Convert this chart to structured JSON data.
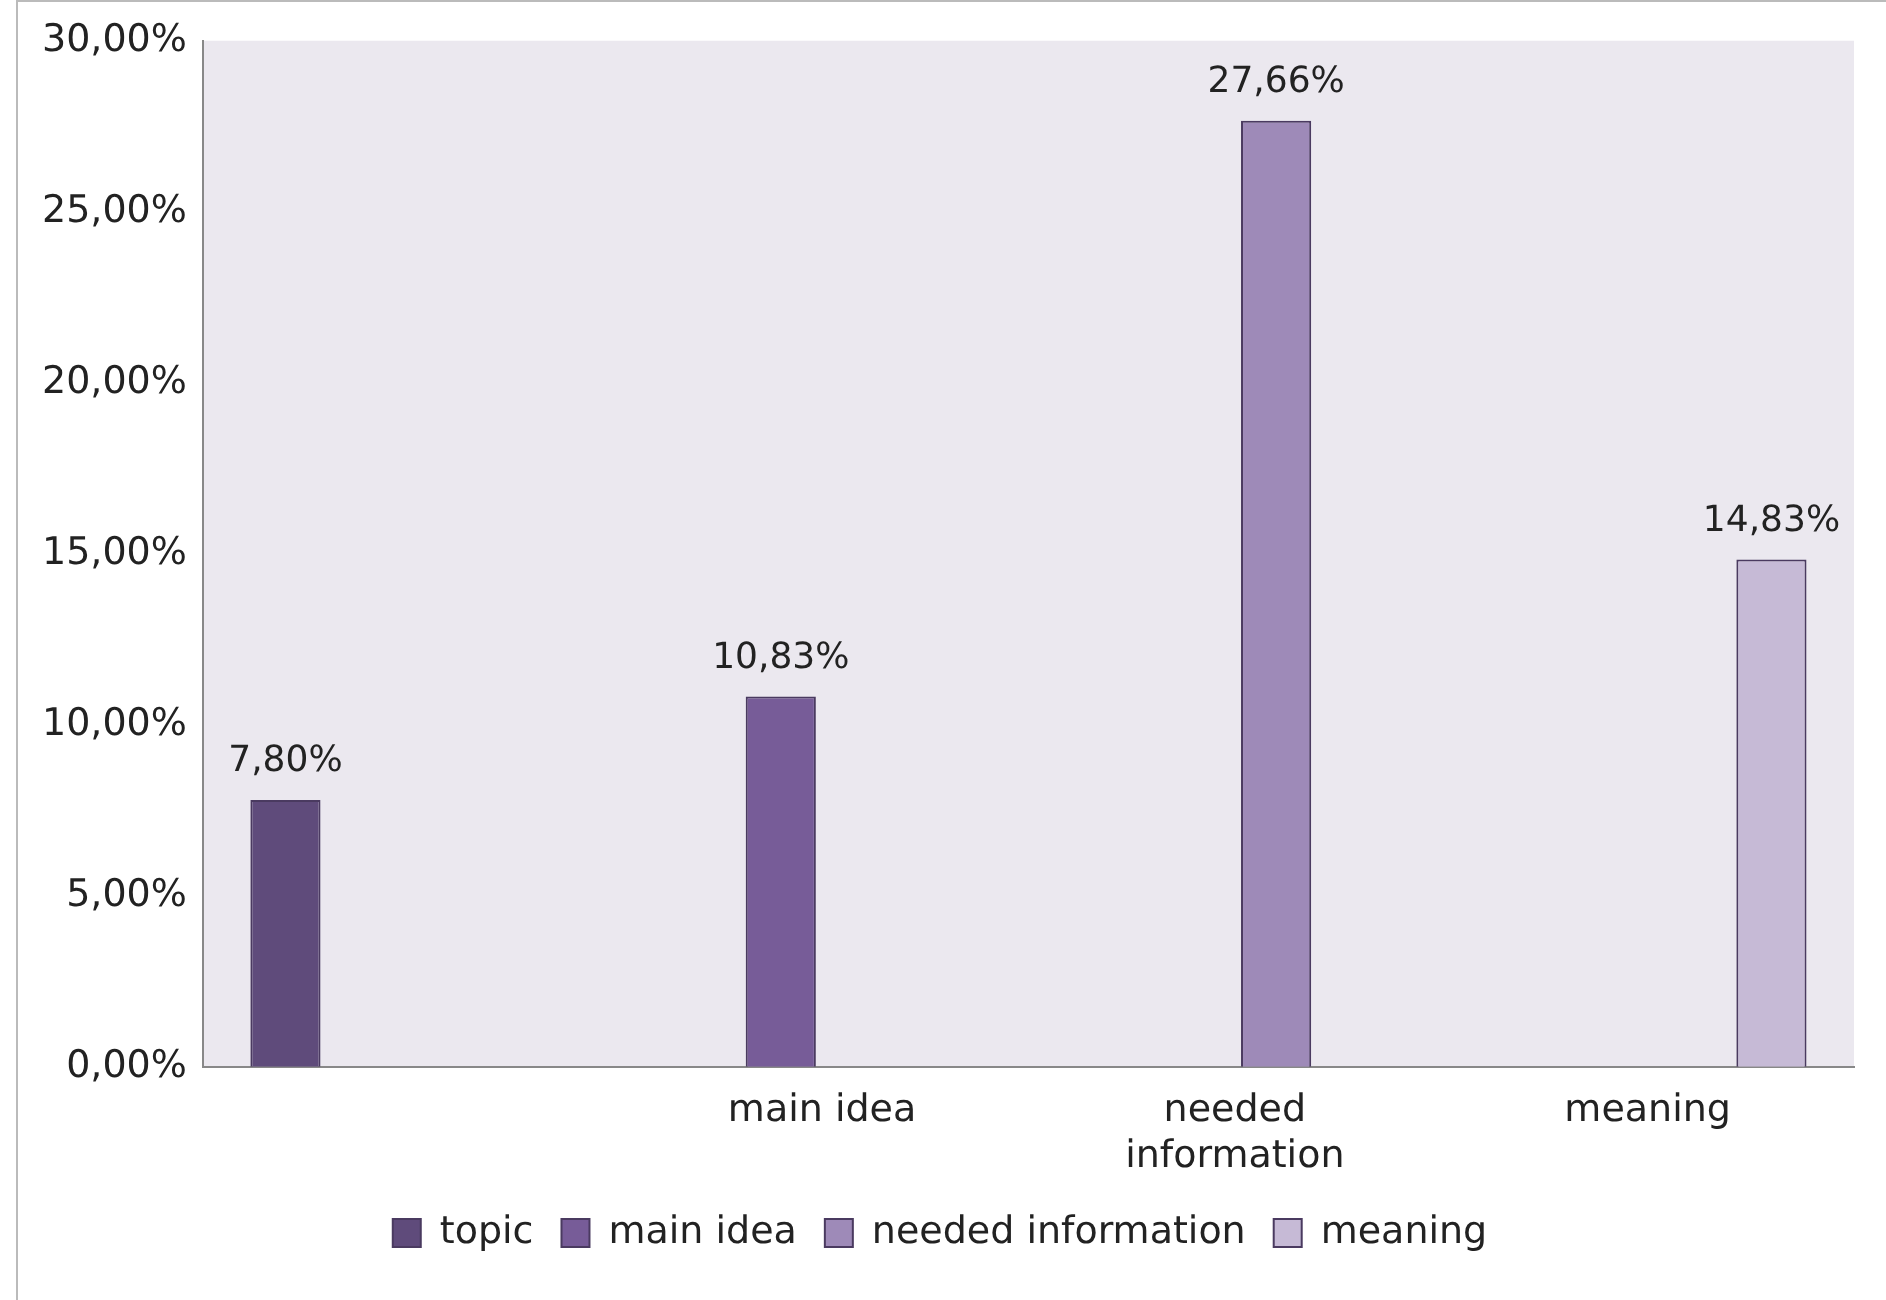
{
  "chart_data": {
    "type": "bar",
    "categories": [
      null,
      "main idea",
      "needed information",
      "meaning"
    ],
    "series": [
      {
        "name": "topic",
        "color": "#5f4b7b",
        "values": [
          7.8,
          null,
          null,
          null
        ],
        "value_labels": [
          "7,80%",
          null,
          null,
          null
        ]
      },
      {
        "name": "main idea",
        "color": "#775c98",
        "values": [
          null,
          10.83,
          null,
          null
        ],
        "value_labels": [
          null,
          "10,83%",
          null,
          null
        ]
      },
      {
        "name": "needed information",
        "color": "#9e8ab8",
        "values": [
          null,
          null,
          27.66,
          null
        ],
        "value_labels": [
          null,
          null,
          "27,66%",
          null
        ]
      },
      {
        "name": "meaning",
        "color": "#c6bad6",
        "values": [
          null,
          null,
          null,
          14.83
        ],
        "value_labels": [
          null,
          null,
          null,
          "14,83%"
        ]
      }
    ],
    "ylim": [
      0,
      30
    ],
    "yticks": [
      {
        "value": 0,
        "label": "0,00%"
      },
      {
        "value": 5,
        "label": "5,00%"
      },
      {
        "value": 10,
        "label": "10,00%"
      },
      {
        "value": 15,
        "label": "15,00%"
      },
      {
        "value": 20,
        "label": "20,00%"
      },
      {
        "value": 25,
        "label": "25,00%"
      },
      {
        "value": 30,
        "label": "30,00%"
      }
    ],
    "grid": false,
    "legend": "bottom"
  }
}
